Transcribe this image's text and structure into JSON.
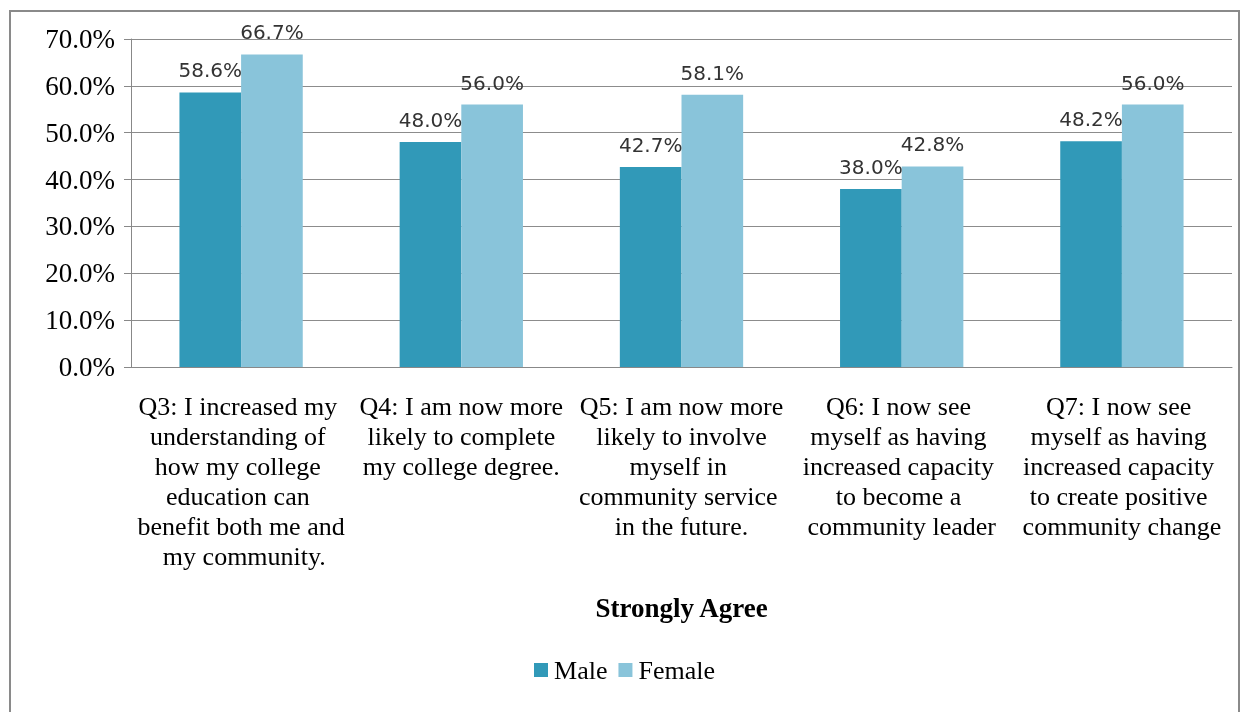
{
  "chart_data": {
    "type": "bar",
    "categories": [
      "Q3: I increased my understanding of how my college education can benefit both me and my community.",
      "Q4: I am now more likely to complete my college degree.",
      "Q5: I am now more likely to involve myself in community service in the future.",
      "Q6: I now see myself as having increased capacity to become a community leader",
      "Q7: I now see myself as having increased capacity to create positive community change"
    ],
    "series": [
      {
        "name": "Male",
        "color": "#3199b8",
        "values": [
          58.6,
          48.0,
          42.7,
          38.0,
          48.2
        ],
        "value_labels": [
          "58.6%",
          "48.0%",
          "42.7%",
          "38.0%",
          "48.2%"
        ]
      },
      {
        "name": "Female",
        "color": "#89c4da",
        "values": [
          66.7,
          56.0,
          58.1,
          42.8,
          56.0
        ],
        "value_labels": [
          "66.7%",
          "56.0%",
          "58.1%",
          "42.8%",
          "56.0%"
        ]
      }
    ],
    "xlabel": "Strongly Agree",
    "ylim": [
      0,
      70
    ],
    "yticks": [
      {
        "value": 0,
        "label": "0.0%"
      },
      {
        "value": 10,
        "label": "10.0%"
      },
      {
        "value": 20,
        "label": "20.0%"
      },
      {
        "value": 30,
        "label": "30.0%"
      },
      {
        "value": 40,
        "label": "40.0%"
      },
      {
        "value": 50,
        "label": "50.0%"
      },
      {
        "value": 60,
        "label": "60.0%"
      },
      {
        "value": 70,
        "label": "70.0%"
      }
    ],
    "grid": "y",
    "legend": "bottom"
  }
}
